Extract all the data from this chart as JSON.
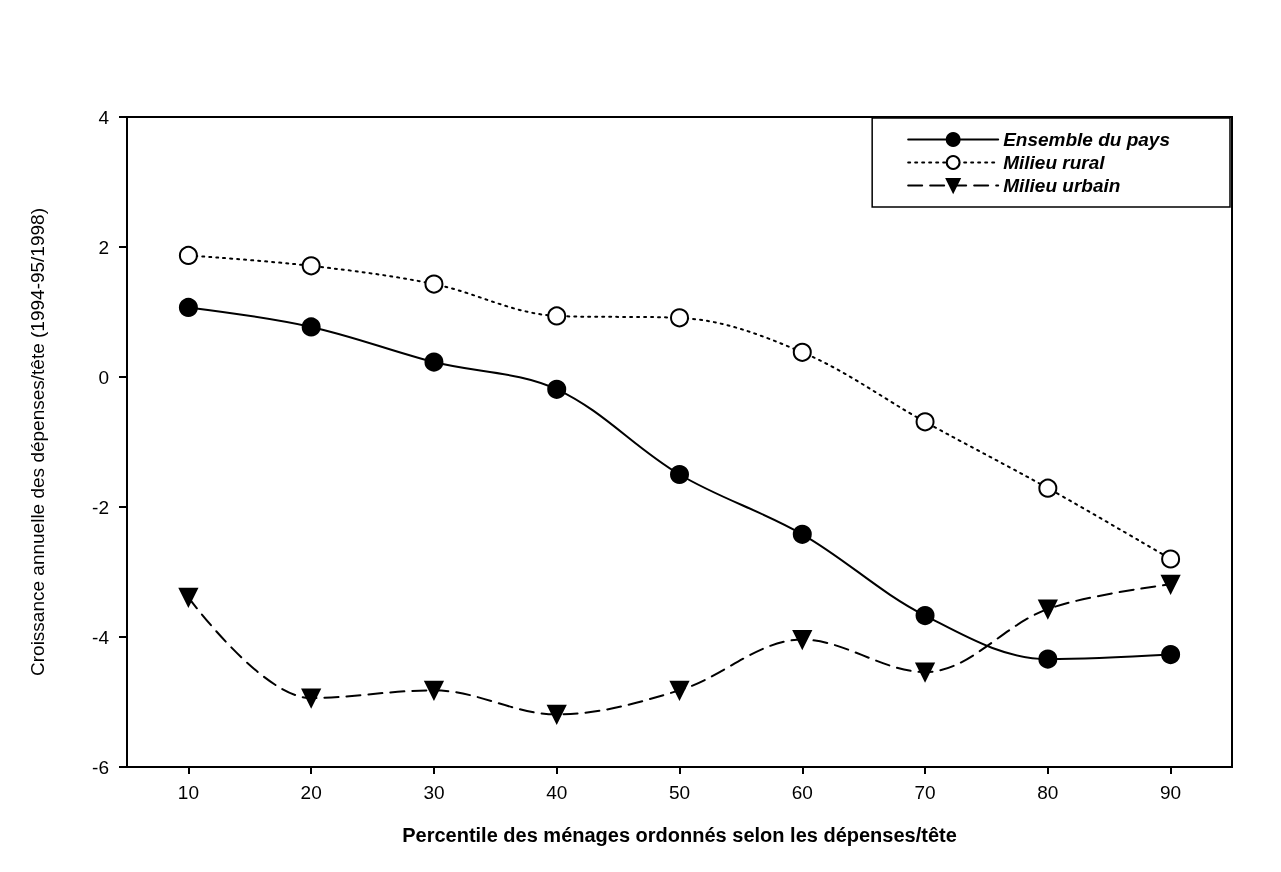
{
  "chart_data": {
    "type": "line",
    "xlabel": "Percentile des ménages ordonnés selon les dépenses/tête",
    "ylabel": "Croissance annuelle des dépenses/tête (1994-95/1998)",
    "categories": [
      "10",
      "20",
      "30",
      "40",
      "50",
      "60",
      "70",
      "80",
      "90"
    ],
    "ylim": [
      -6,
      4
    ],
    "yticks": [
      -6,
      -4,
      -2,
      0,
      2,
      4
    ],
    "grid": false,
    "legend": "top right",
    "series": [
      {
        "name": "Ensemble du pays",
        "color": "#000000",
        "marker": "circle",
        "line_style": "solid",
        "values": [
          1.07,
          0.77,
          0.23,
          -0.19,
          -1.5,
          -2.42,
          -3.67,
          -4.34,
          -4.27
        ]
      },
      {
        "name": "Milieu rural",
        "color": "#000000",
        "marker": "circle_open",
        "line_style": "dotted",
        "values": [
          1.87,
          1.71,
          1.43,
          0.94,
          0.91,
          0.38,
          -0.69,
          -1.71,
          -2.8
        ]
      },
      {
        "name": "Milieu urbain",
        "color": "#000000",
        "marker": "triangle_down",
        "line_style": "dashed",
        "values": [
          -3.39,
          -4.94,
          -4.82,
          -5.19,
          -4.82,
          -4.04,
          -4.54,
          -3.57,
          -3.19
        ]
      }
    ]
  }
}
